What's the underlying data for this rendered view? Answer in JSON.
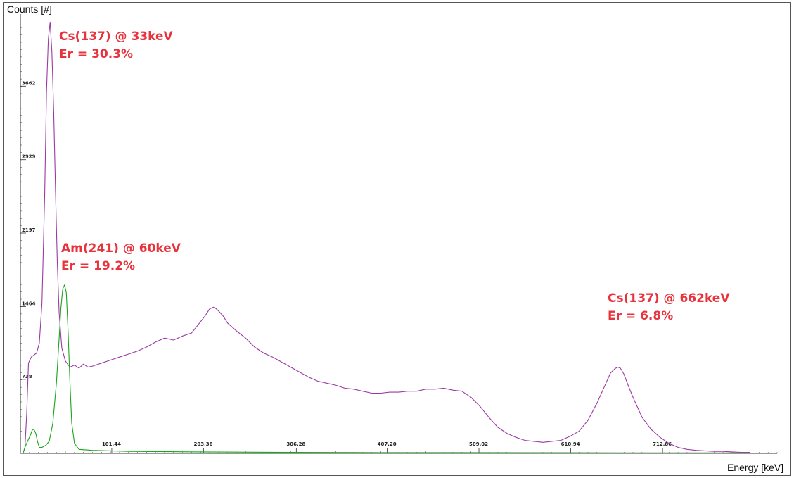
{
  "chart_data": {
    "type": "line",
    "xlabel": "Energy [keV]",
    "ylabel": "Counts [#]",
    "xlim": [
      0,
      840
    ],
    "ylim": [
      0,
      4380
    ],
    "x_ticks": [
      "101.44",
      "203.36",
      "306.28",
      "407.20",
      "509.02",
      "610.94",
      "712.86"
    ],
    "y_ticks": [
      "738",
      "1464",
      "2197",
      "2929",
      "3662"
    ],
    "grid": false,
    "series": [
      {
        "color": "#9b3aa3",
        "points": [
          [
            3,
            4
          ],
          [
            5,
            50
          ],
          [
            7,
            400
          ],
          [
            9,
            900
          ],
          [
            12,
            960
          ],
          [
            15,
            980
          ],
          [
            18,
            1000
          ],
          [
            21,
            1100
          ],
          [
            24,
            1500
          ],
          [
            27,
            2600
          ],
          [
            29,
            3600
          ],
          [
            31,
            4130
          ],
          [
            33,
            4300
          ],
          [
            35,
            4000
          ],
          [
            37,
            3400
          ],
          [
            39,
            2600
          ],
          [
            41,
            1900
          ],
          [
            43,
            1400
          ],
          [
            46,
            1050
          ],
          [
            50,
            920
          ],
          [
            55,
            860
          ],
          [
            60,
            880
          ],
          [
            65,
            850
          ],
          [
            70,
            890
          ],
          [
            75,
            860
          ],
          [
            80,
            870
          ],
          [
            90,
            900
          ],
          [
            100,
            930
          ],
          [
            110,
            960
          ],
          [
            120,
            990
          ],
          [
            130,
            1020
          ],
          [
            140,
            1060
          ],
          [
            150,
            1110
          ],
          [
            160,
            1150
          ],
          [
            170,
            1130
          ],
          [
            180,
            1170
          ],
          [
            190,
            1200
          ],
          [
            198,
            1290
          ],
          [
            205,
            1370
          ],
          [
            210,
            1440
          ],
          [
            215,
            1460
          ],
          [
            220,
            1420
          ],
          [
            225,
            1370
          ],
          [
            230,
            1300
          ],
          [
            240,
            1220
          ],
          [
            250,
            1150
          ],
          [
            260,
            1060
          ],
          [
            270,
            1000
          ],
          [
            280,
            960
          ],
          [
            290,
            910
          ],
          [
            300,
            860
          ],
          [
            310,
            810
          ],
          [
            320,
            760
          ],
          [
            330,
            720
          ],
          [
            340,
            700
          ],
          [
            350,
            680
          ],
          [
            360,
            650
          ],
          [
            370,
            640
          ],
          [
            380,
            620
          ],
          [
            390,
            600
          ],
          [
            400,
            600
          ],
          [
            410,
            610
          ],
          [
            420,
            610
          ],
          [
            430,
            620
          ],
          [
            440,
            620
          ],
          [
            450,
            640
          ],
          [
            460,
            640
          ],
          [
            470,
            650
          ],
          [
            480,
            630
          ],
          [
            490,
            620
          ],
          [
            500,
            560
          ],
          [
            510,
            470
          ],
          [
            520,
            360
          ],
          [
            530,
            260
          ],
          [
            540,
            200
          ],
          [
            550,
            160
          ],
          [
            560,
            130
          ],
          [
            570,
            120
          ],
          [
            580,
            110
          ],
          [
            590,
            120
          ],
          [
            600,
            130
          ],
          [
            610,
            170
          ],
          [
            620,
            220
          ],
          [
            630,
            330
          ],
          [
            640,
            500
          ],
          [
            650,
            700
          ],
          [
            655,
            800
          ],
          [
            660,
            845
          ],
          [
            663,
            860
          ],
          [
            666,
            850
          ],
          [
            670,
            790
          ],
          [
            675,
            670
          ],
          [
            680,
            560
          ],
          [
            690,
            360
          ],
          [
            700,
            240
          ],
          [
            710,
            160
          ],
          [
            720,
            100
          ],
          [
            730,
            60
          ],
          [
            740,
            40
          ],
          [
            750,
            30
          ],
          [
            760,
            25
          ],
          [
            770,
            20
          ],
          [
            780,
            20
          ],
          [
            790,
            15
          ],
          [
            800,
            10
          ],
          [
            810,
            10
          ]
        ]
      },
      {
        "color": "#1aa51a",
        "points": [
          [
            3,
            4
          ],
          [
            5,
            60
          ],
          [
            8,
            120
          ],
          [
            11,
            180
          ],
          [
            13,
            230
          ],
          [
            15,
            240
          ],
          [
            17,
            200
          ],
          [
            19,
            120
          ],
          [
            21,
            60
          ],
          [
            24,
            60
          ],
          [
            28,
            80
          ],
          [
            32,
            120
          ],
          [
            36,
            300
          ],
          [
            40,
            700
          ],
          [
            43,
            1150
          ],
          [
            45,
            1450
          ],
          [
            47,
            1640
          ],
          [
            49,
            1680
          ],
          [
            51,
            1600
          ],
          [
            53,
            1200
          ],
          [
            55,
            700
          ],
          [
            57,
            300
          ],
          [
            60,
            100
          ],
          [
            65,
            40
          ],
          [
            80,
            30
          ],
          [
            120,
            20
          ],
          [
            200,
            15
          ],
          [
            300,
            10
          ],
          [
            400,
            8
          ],
          [
            500,
            8
          ],
          [
            600,
            6
          ],
          [
            700,
            5
          ],
          [
            810,
            5
          ]
        ]
      }
    ]
  },
  "annotations": [
    {
      "line1": "Cs(137) @ 33keV",
      "line2": "Er = 30.3%",
      "color": "#e8323c"
    },
    {
      "line1": "Am(241) @ 60keV",
      "line2": "Er = 19.2%",
      "color": "#e8323c"
    },
    {
      "line1": "Cs(137) @ 662keV",
      "line2": "Er = 6.8%",
      "color": "#e8323c"
    }
  ]
}
